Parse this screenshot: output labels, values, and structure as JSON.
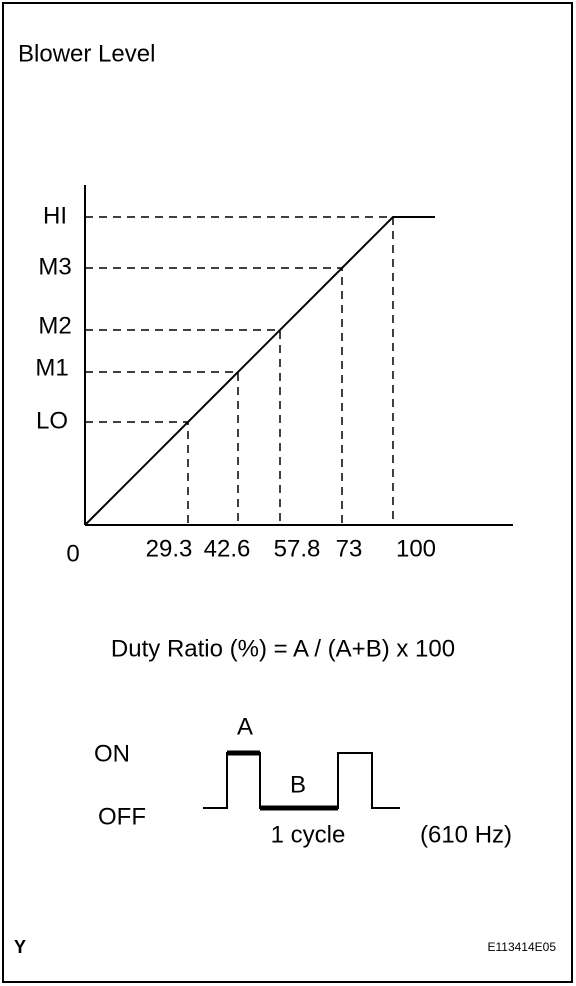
{
  "header": {
    "title": "Blower Level"
  },
  "graph": {
    "levels": [
      "HI",
      "M3",
      "M2",
      "M1",
      "LO"
    ],
    "origin": "0",
    "duty_labels": [
      "29.3",
      "42.6",
      "57.8",
      "73",
      "100"
    ]
  },
  "formula": "Duty Ratio (%) = A / (A+B) x 100",
  "waveform": {
    "on": "ON",
    "off": "OFF",
    "a": "A",
    "b": "B",
    "cycle": "1 cycle",
    "frequency": "(610 Hz)"
  },
  "footer": {
    "mark": "Y",
    "code": "E113414E05"
  }
}
